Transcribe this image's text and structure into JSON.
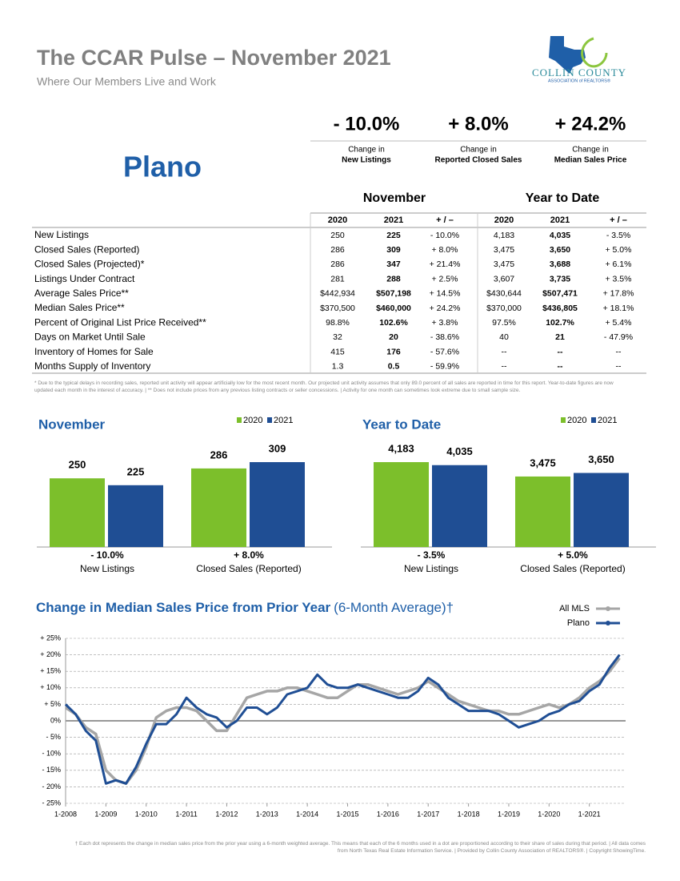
{
  "header": {
    "title": "The CCAR Pulse – November 2021",
    "subtitle": "Where Our Members Live and Work",
    "area": "Plano"
  },
  "logo": {
    "name": "COLLIN COUNTY",
    "tagline": "ASSOCIATION of REALTORS®"
  },
  "summary": [
    {
      "value": "- 10.0%",
      "caption": "Change in",
      "label": "New Listings"
    },
    {
      "value": "+ 8.0%",
      "caption": "Change in",
      "label": "Reported Closed Sales"
    },
    {
      "value": "+ 24.2%",
      "caption": "Change in",
      "label": "Median Sales Price"
    }
  ],
  "table": {
    "groups": [
      "November",
      "Year to Date"
    ],
    "columns": [
      "2020",
      "2021",
      "+ / –",
      "2020",
      "2021",
      "+ / –"
    ],
    "rows": [
      [
        "New Listings",
        "250",
        "225",
        "- 10.0%",
        "4,183",
        "4,035",
        "- 3.5%"
      ],
      [
        "Closed Sales (Reported)",
        "286",
        "309",
        "+ 8.0%",
        "3,475",
        "3,650",
        "+ 5.0%"
      ],
      [
        "Closed Sales (Projected)*",
        "286",
        "347",
        "+ 21.4%",
        "3,475",
        "3,688",
        "+ 6.1%"
      ],
      [
        "Listings Under Contract",
        "281",
        "288",
        "+ 2.5%",
        "3,607",
        "3,735",
        "+ 3.5%"
      ],
      [
        "Average Sales Price**",
        "$442,934",
        "$507,198",
        "+ 14.5%",
        "$430,644",
        "$507,471",
        "+ 17.8%"
      ],
      [
        "Median Sales Price**",
        "$370,500",
        "$460,000",
        "+ 24.2%",
        "$370,000",
        "$436,805",
        "+ 18.1%"
      ],
      [
        "Percent of Original List Price Received**",
        "98.8%",
        "102.6%",
        "+ 3.8%",
        "97.5%",
        "102.7%",
        "+ 5.4%"
      ],
      [
        "Days on Market Until Sale",
        "32",
        "20",
        "- 38.6%",
        "40",
        "21",
        "- 47.9%"
      ],
      [
        "Inventory of Homes for Sale",
        "415",
        "176",
        "- 57.6%",
        "--",
        "--",
        "--"
      ],
      [
        "Months Supply of Inventory",
        "1.3",
        "0.5",
        "- 59.9%",
        "--",
        "--",
        "--"
      ]
    ],
    "footnote": "* Due to the typical delays in recording sales, reported unit activity will appear artificially low for the most recent month. Our projected unit activity assumes that only 89.0 percent of all sales are reported in time for this report. Year-to-date figures are now updated each month in the interest of accuracy. | ** Does not include prices from any previous listing contracts or seller concessions. | Activity for one month can sometimes look extreme due to small sample size."
  },
  "chart_data": [
    {
      "type": "bar",
      "title": "November",
      "categories": [
        "New Listings",
        "Closed Sales (Reported)"
      ],
      "category_changes": [
        "- 10.0%",
        "+ 8.0%"
      ],
      "series": [
        {
          "name": "2020",
          "color": "#7cbf2b",
          "values": [
            250,
            286
          ]
        },
        {
          "name": "2021",
          "color": "#1f4e94",
          "values": [
            225,
            309
          ]
        }
      ]
    },
    {
      "type": "bar",
      "title": "Year to Date",
      "categories": [
        "New Listings",
        "Closed Sales (Reported)"
      ],
      "category_changes": [
        "- 3.5%",
        "+ 5.0%"
      ],
      "series": [
        {
          "name": "2020",
          "color": "#7cbf2b",
          "values": [
            4183,
            3475
          ],
          "value_labels": [
            "4,183",
            "3,475"
          ]
        },
        {
          "name": "2021",
          "color": "#1f4e94",
          "values": [
            4035,
            3650
          ],
          "value_labels": [
            "4,035",
            "3,650"
          ]
        }
      ]
    },
    {
      "type": "line",
      "title": "Change in Median Sales Price from Prior Year",
      "subtitle": "(6-Month Average)†",
      "x": [
        2008,
        2008.25,
        2008.5,
        2008.75,
        2009,
        2009.25,
        2009.5,
        2009.75,
        2010,
        2010.25,
        2010.5,
        2010.75,
        2011,
        2011.25,
        2011.5,
        2011.75,
        2012,
        2012.25,
        2012.5,
        2012.75,
        2013,
        2013.25,
        2013.5,
        2013.75,
        2014,
        2014.25,
        2014.5,
        2014.75,
        2015,
        2015.25,
        2015.5,
        2015.75,
        2016,
        2016.25,
        2016.5,
        2016.75,
        2017,
        2017.25,
        2017.5,
        2017.75,
        2018,
        2018.25,
        2018.5,
        2018.75,
        2019,
        2019.25,
        2019.5,
        2019.75,
        2020,
        2020.25,
        2020.5,
        2020.75,
        2021,
        2021.25,
        2021.5,
        2021.75
      ],
      "xlim": [
        2008,
        2021.9
      ],
      "xticks": [
        {
          "value": 2008,
          "label": "1-2008"
        },
        {
          "value": 2009,
          "label": "1-2009"
        },
        {
          "value": 2010,
          "label": "1-2010"
        },
        {
          "value": 2011,
          "label": "1-2011"
        },
        {
          "value": 2012,
          "label": "1-2012"
        },
        {
          "value": 2013,
          "label": "1-2013"
        },
        {
          "value": 2014,
          "label": "1-2014"
        },
        {
          "value": 2015,
          "label": "1-2015"
        },
        {
          "value": 2016,
          "label": "1-2016"
        },
        {
          "value": 2017,
          "label": "1-2017"
        },
        {
          "value": 2018,
          "label": "1-2018"
        },
        {
          "value": 2019,
          "label": "1-2019"
        },
        {
          "value": 2020,
          "label": "1-2020"
        },
        {
          "value": 2021,
          "label": "1-2021"
        }
      ],
      "ylim": [
        -25,
        25
      ],
      "yticks": [
        {
          "value": 25,
          "label": "+ 25%"
        },
        {
          "value": 20,
          "label": "+ 20%"
        },
        {
          "value": 15,
          "label": "+ 15%"
        },
        {
          "value": 10,
          "label": "+ 10%"
        },
        {
          "value": 5,
          "label": "+ 5%"
        },
        {
          "value": 0,
          "label": "0%"
        },
        {
          "value": -5,
          "label": "- 5%"
        },
        {
          "value": -10,
          "label": "- 10%"
        },
        {
          "value": -15,
          "label": "- 15%"
        },
        {
          "value": -20,
          "label": "- 20%"
        },
        {
          "value": -25,
          "label": "- 25%"
        }
      ],
      "grid": true,
      "series": [
        {
          "name": "All MLS",
          "color": "#a6a6a6",
          "values": [
            4,
            2,
            -2,
            -4,
            -15,
            -18,
            -19,
            -15,
            -8,
            1,
            3,
            4,
            4,
            3,
            0,
            -3,
            -3,
            2,
            7,
            8,
            9,
            9,
            10,
            10,
            9,
            8,
            7,
            7,
            9,
            11,
            11,
            10,
            9,
            8,
            9,
            10,
            12,
            10,
            8,
            6,
            5,
            4,
            3,
            3,
            2,
            2,
            3,
            4,
            5,
            4,
            5,
            7,
            10,
            12,
            15,
            19
          ]
        },
        {
          "name": "Plano",
          "color": "#1f4e94",
          "values": [
            5,
            2,
            -3,
            -6,
            -19,
            -18,
            -19,
            -14,
            -7,
            -1,
            -1,
            2,
            7,
            4,
            2,
            1,
            -2,
            0,
            4,
            4,
            2,
            4,
            8,
            9,
            10,
            14,
            11,
            10,
            10,
            11,
            10,
            9,
            8,
            7,
            7,
            9,
            13,
            11,
            7,
            5,
            3,
            3,
            3,
            2,
            0,
            -2,
            -1,
            0,
            2,
            3,
            5,
            6,
            9,
            11,
            16,
            20
          ]
        }
      ],
      "footnote": "† Each dot represents the change in median sales price from the prior year using a 6-month weighted average. This means that each of the 6 months used in a dot are proportioned according to their share of sales during that period. | All data comes from North Texas Real Estate Information Service. | Provided by Collin County Association of REALTORS®. | Copyright ShowingTime."
    }
  ]
}
